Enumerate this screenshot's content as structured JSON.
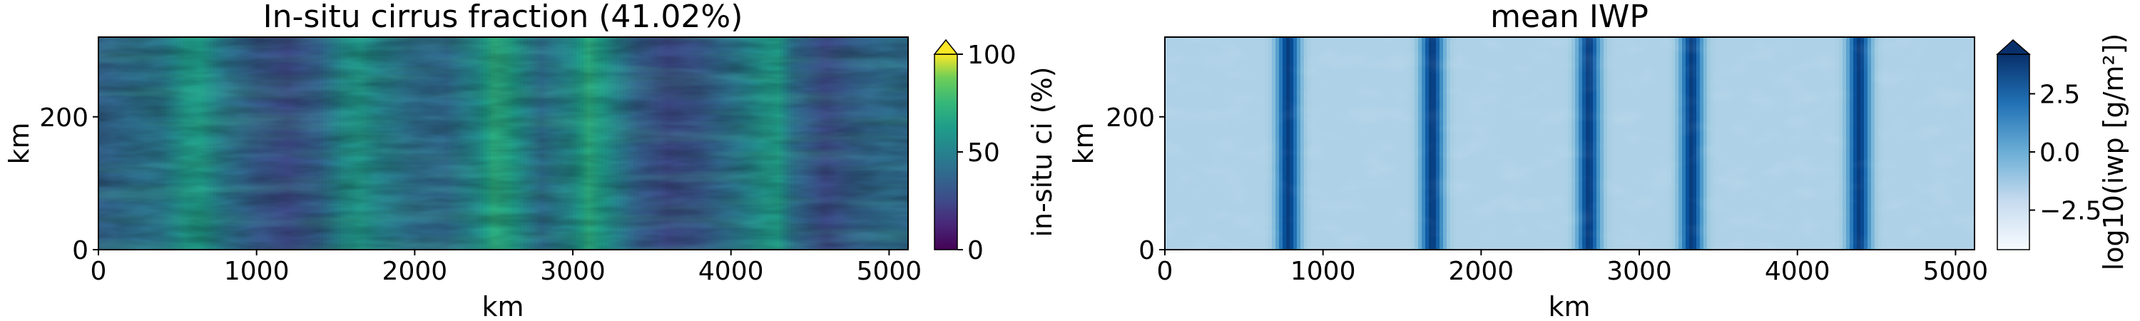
{
  "chart_data": [
    {
      "type": "heatmap",
      "title": "In-situ cirrus fraction (41.02%)",
      "xlabel": "km",
      "ylabel": "km",
      "xlim": [
        0,
        5120
      ],
      "ylim": [
        0,
        320
      ],
      "xticks": [
        "0",
        "1000",
        "2000",
        "3000",
        "4000",
        "5000"
      ],
      "xtick_values": [
        0,
        1000,
        2000,
        3000,
        4000,
        5000
      ],
      "yticks": [
        "0",
        "200"
      ],
      "ytick_values": [
        0,
        200
      ],
      "colorbar": {
        "label": "in-situ ci (%)",
        "min": 0,
        "max": 100,
        "ticks": [
          "0",
          "50",
          "100"
        ],
        "tick_values": [
          0,
          50,
          100
        ],
        "colormap": "viridis",
        "extend": "max"
      },
      "column_profile_km": [
        0,
        200,
        400,
        550,
        650,
        800,
        1000,
        1200,
        1400,
        1550,
        1650,
        1800,
        2000,
        2200,
        2400,
        2500,
        2600,
        2800,
        3000,
        3100,
        3200,
        3400,
        3600,
        3800,
        4000,
        4200,
        4300,
        4400,
        4600,
        4800,
        5000,
        5120
      ],
      "column_profile_value": [
        35,
        40,
        45,
        60,
        62,
        45,
        32,
        25,
        35,
        55,
        60,
        50,
        40,
        38,
        55,
        70,
        65,
        40,
        55,
        70,
        60,
        35,
        25,
        30,
        42,
        58,
        62,
        40,
        25,
        35,
        40,
        38
      ]
    },
    {
      "type": "heatmap",
      "title": "mean IWP",
      "xlabel": "km",
      "ylabel": "km",
      "xlim": [
        0,
        5120
      ],
      "ylim": [
        0,
        320
      ],
      "xticks": [
        "0",
        "1000",
        "2000",
        "3000",
        "4000",
        "5000"
      ],
      "xtick_values": [
        0,
        1000,
        2000,
        3000,
        4000,
        5000
      ],
      "yticks": [
        "0",
        "200"
      ],
      "ytick_values": [
        0,
        200
      ],
      "colorbar": {
        "label": "log10(iwp [g/m²])",
        "min": -4.2,
        "max": 4.2,
        "ticks": [
          "−2.5",
          "0.0",
          "2.5"
        ],
        "tick_values": [
          -2.5,
          0.0,
          2.5
        ],
        "colormap": "Blues",
        "extend": "max"
      },
      "band_centers_km": [
        780,
        1690,
        2680,
        3330,
        4390
      ],
      "background_value": -1.5,
      "band_peak_value": 3.8
    }
  ]
}
